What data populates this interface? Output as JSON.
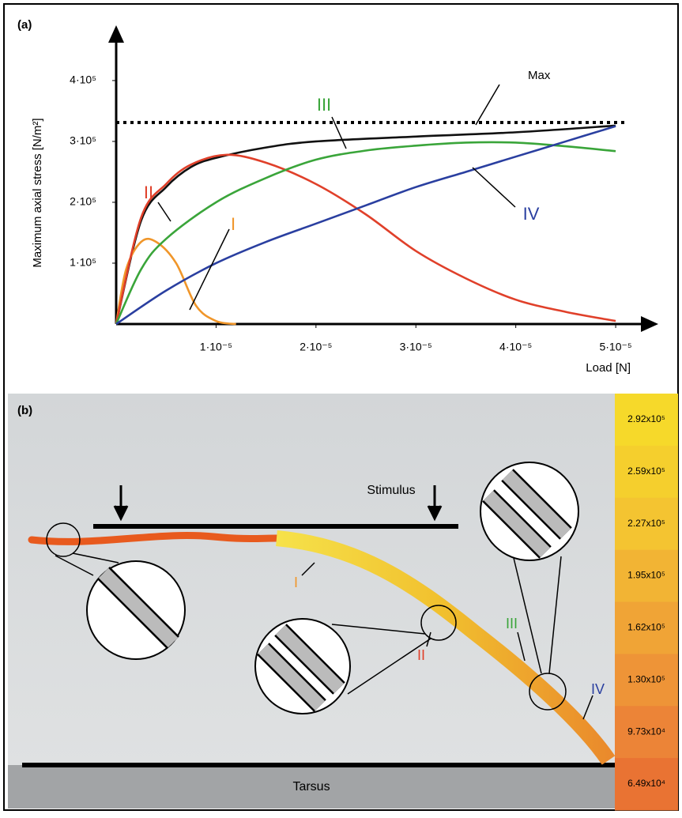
{
  "chart_data": {
    "type": "line",
    "panel": "(a)",
    "xlabel": "Load [N]",
    "ylabel": "Maximum axial stress [N/m²]",
    "xlim": [
      0,
      5.3e-05
    ],
    "ylim": [
      0,
      470000
    ],
    "xticks": [
      {
        "value": 1e-05,
        "label": "1·10⁻⁵"
      },
      {
        "value": 2e-05,
        "label": "2·10⁻⁵"
      },
      {
        "value": 3e-05,
        "label": "3·10⁻⁵"
      },
      {
        "value": 4e-05,
        "label": "4·10⁻⁵"
      },
      {
        "value": 5e-05,
        "label": "5·10⁻⁵"
      }
    ],
    "yticks": [
      {
        "value": 100000,
        "label": "1·10⁵"
      },
      {
        "value": 200000,
        "label": "2·10⁵"
      },
      {
        "value": 300000,
        "label": "3·10⁵"
      },
      {
        "value": 400000,
        "label": "4·10⁵"
      }
    ],
    "reference_line": {
      "value": 331000,
      "style": "dotted"
    },
    "series": [
      {
        "name": "Max",
        "color": "#111111",
        "x": [
          0,
          2.5e-06,
          5e-06,
          7.5e-06,
          1e-05,
          1.5e-05,
          2e-05,
          3e-05,
          4e-05,
          5e-05
        ],
        "values": [
          0,
          170000,
          225000,
          258000,
          273000,
          290000,
          300000,
          308000,
          315000,
          326000
        ]
      },
      {
        "name": "I",
        "color": "#f0962a",
        "x": [
          0,
          1e-06,
          2.5e-06,
          4e-06,
          6e-06,
          8e-06,
          1e-05,
          1.2e-05
        ],
        "values": [
          0,
          90000,
          135000,
          135000,
          100000,
          30000,
          5000,
          0
        ]
      },
      {
        "name": "II",
        "color": "#e0402a",
        "x": [
          0,
          2.5e-06,
          5e-06,
          7.5e-06,
          1.1e-05,
          1.5e-05,
          2e-05,
          2.5e-05,
          3e-05,
          3.5e-05,
          4e-05,
          4.5e-05,
          5e-05
        ],
        "values": [
          0,
          175000,
          230000,
          262000,
          278000,
          265000,
          230000,
          180000,
          120000,
          75000,
          40000,
          20000,
          5000
        ]
      },
      {
        "name": "III",
        "color": "#3aa53a",
        "x": [
          0,
          2.5e-06,
          5e-06,
          1e-05,
          1.5e-05,
          2e-05,
          2.5e-05,
          3e-05,
          3.5e-05,
          4e-05,
          4.5e-05,
          5e-05
        ],
        "values": [
          0,
          90000,
          140000,
          200000,
          240000,
          270000,
          285000,
          293000,
          298000,
          298000,
          292000,
          284000
        ]
      },
      {
        "name": "IV",
        "color": "#2a3fa0",
        "x": [
          0,
          5e-06,
          1e-05,
          1.5e-05,
          2e-05,
          2.5e-05,
          3e-05,
          3.5e-05,
          4e-05,
          4.5e-05,
          5e-05
        ],
        "values": [
          0,
          55000,
          100000,
          135000,
          165000,
          195000,
          225000,
          250000,
          275000,
          300000,
          325000
        ]
      }
    ]
  },
  "panel_b": {
    "label": "(b)",
    "stimulus": "Stimulus",
    "base": "Tarsus",
    "markers": [
      "I",
      "II",
      "III",
      "IV"
    ],
    "colorbar": [
      "2.92x10⁵",
      "2.59x10⁵",
      "2.27x10⁵",
      "1.95x10⁵",
      "1.62x10⁵",
      "1.30x10⁵",
      "9.73x10⁴",
      "6.49x10⁴"
    ]
  }
}
